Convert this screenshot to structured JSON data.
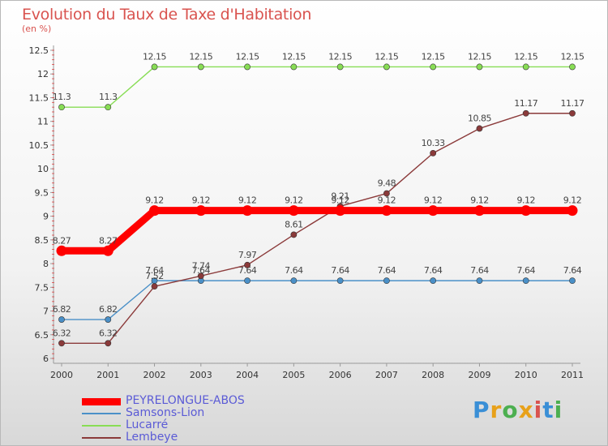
{
  "title": "Evolution du Taux de Taxe d'Habitation",
  "subtitle": "(en %)",
  "logo": {
    "text": "Proxiti",
    "colors": [
      "#3a8fd6",
      "#e8a11a",
      "#4caf50",
      "#e8a11a",
      "#d9534f",
      "#3a8fd6",
      "#4caf50"
    ]
  },
  "chart_data": {
    "type": "line",
    "x": [
      2000,
      2001,
      2002,
      2003,
      2004,
      2005,
      2006,
      2007,
      2008,
      2009,
      2010,
      2011
    ],
    "x_tick_labels": [
      "2000",
      "2001",
      "2002",
      "2003",
      "2004",
      "2005",
      "2006",
      "2007",
      "2008",
      "2009",
      "2010",
      "2011"
    ],
    "ylim": [
      6,
      12.5
    ],
    "y_ticks": [
      6,
      6.5,
      7,
      7.5,
      8,
      8.5,
      9,
      9.5,
      10,
      10.5,
      11,
      11.5,
      12,
      12.5
    ],
    "y_tick_labels": [
      "6",
      "6.5",
      "7",
      "7.5",
      "8",
      "8.5",
      "9",
      "9.5",
      "10",
      "10.5",
      "11",
      "11.5",
      "12",
      "12.5"
    ],
    "grid": false,
    "legend_position": "bottom-left",
    "series": [
      {
        "name": "PEYRELONGUE-ABOS",
        "color": "#ff0000",
        "values": [
          8.27,
          8.27,
          9.12,
          9.12,
          9.12,
          9.12,
          9.12,
          9.12,
          9.12,
          9.12,
          9.12,
          9.12
        ],
        "labels": [
          "8.27",
          "8.27",
          "9.12",
          "9.12",
          "9.12",
          "9.12",
          "9.12",
          "9.12",
          "9.12",
          "9.12",
          "9.12",
          "9.12"
        ]
      },
      {
        "name": "Samsons-Lion",
        "color": "#4a90c8",
        "values": [
          6.82,
          6.82,
          7.64,
          7.64,
          7.64,
          7.64,
          7.64,
          7.64,
          7.64,
          7.64,
          7.64,
          7.64
        ],
        "labels": [
          "6.82",
          "6.82",
          "7.64",
          "7.64",
          "7.64",
          "7.64",
          "7.64",
          "7.64",
          "7.64",
          "7.64",
          "7.64",
          "7.64"
        ]
      },
      {
        "name": "Lucarré",
        "color": "#88dd55",
        "values": [
          11.3,
          11.3,
          12.15,
          12.15,
          12.15,
          12.15,
          12.15,
          12.15,
          12.15,
          12.15,
          12.15,
          12.15
        ],
        "labels": [
          "11.3",
          "11.3",
          "12.15",
          "12.15",
          "12.15",
          "12.15",
          "12.15",
          "12.15",
          "12.15",
          "12.15",
          "12.15",
          "12.15"
        ]
      },
      {
        "name": "Lembeye",
        "color": "#8b3a3a",
        "values": [
          6.32,
          6.32,
          7.52,
          7.74,
          7.97,
          8.61,
          9.21,
          9.48,
          10.33,
          10.85,
          11.17,
          11.17
        ],
        "labels": [
          "6.32",
          "6.32",
          "7.52",
          "7.74",
          "7.97",
          "8.61",
          "9.21",
          "9.48",
          "10.33",
          "10.85",
          "11.17",
          "11.17"
        ]
      }
    ]
  }
}
